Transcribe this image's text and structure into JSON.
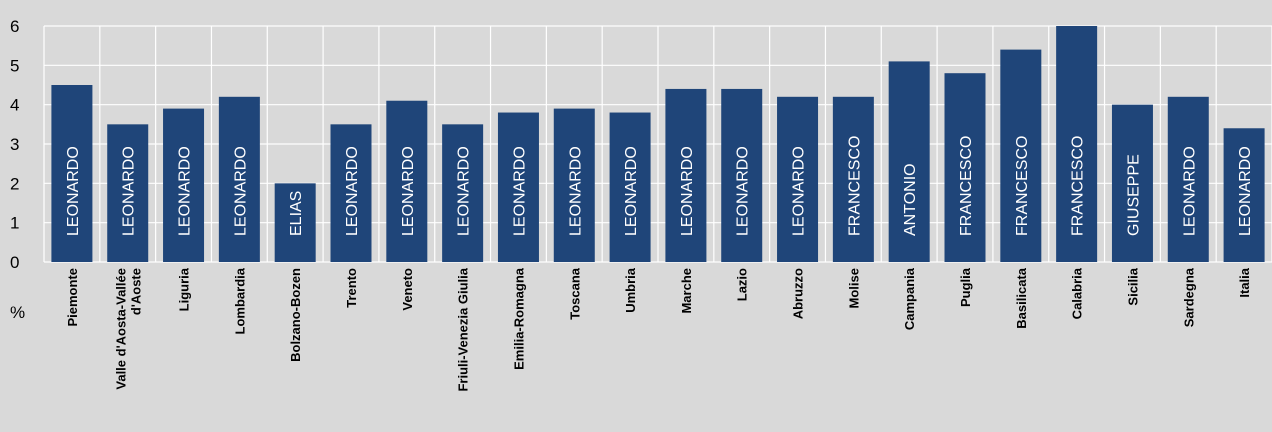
{
  "chart_data": {
    "type": "bar",
    "ylabel": "%",
    "ylim": [
      0,
      6
    ],
    "yticks": [
      0,
      1,
      2,
      3,
      4,
      5,
      6
    ],
    "grid": true,
    "bar_color": "#1f4579",
    "background": "#d9d9d9",
    "categories": [
      "Piemonte",
      "Valle d'Aosta-Vallée d'Aoste",
      "Liguria",
      "Lombardia",
      "Bolzano-Bozen",
      "Trento",
      "Veneto",
      "Friuli-Venezia Giulia",
      "Emilia-Romagna",
      "Toscana",
      "Umbria",
      "Marche",
      "Lazio",
      "Abruzzo",
      "Molise",
      "Campania",
      "Puglia",
      "Basilicata",
      "Calabria",
      "Sicilia",
      "Sardegna",
      "Italia"
    ],
    "values": [
      4.5,
      3.5,
      3.9,
      4.2,
      2.0,
      3.5,
      4.1,
      3.5,
      3.8,
      3.9,
      3.8,
      4.4,
      4.4,
      4.2,
      4.2,
      5.1,
      4.8,
      5.4,
      6.0,
      4.0,
      4.2,
      3.4
    ],
    "bar_labels": [
      "LEONARDO",
      "LEONARDO",
      "LEONARDO",
      "LEONARDO",
      "ELIAS",
      "LEONARDO",
      "LEONARDO",
      "LEONARDO",
      "LEONARDO",
      "LEONARDO",
      "LEONARDO",
      "LEONARDO",
      "LEONARDO",
      "LEONARDO",
      "FRANCESCO",
      "ANTONIO",
      "FRANCESCO",
      "FRANCESCO",
      "FRANCESCO",
      "GIUSEPPE",
      "LEONARDO",
      "LEONARDO"
    ]
  }
}
